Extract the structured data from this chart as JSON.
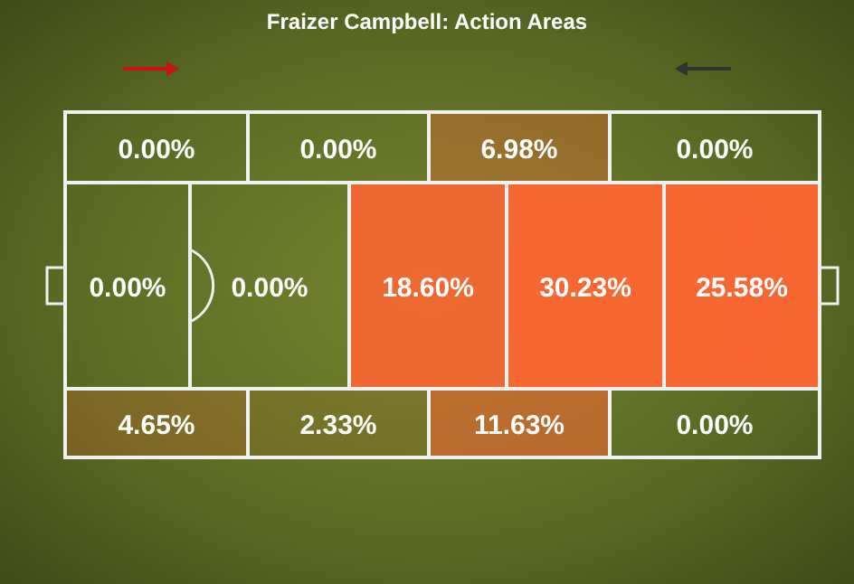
{
  "chart_data": {
    "type": "other",
    "title": "Fraizer Campbell: Action Areas",
    "values": [
      0.0,
      0.0,
      6.98,
      0.0,
      0.0,
      0.0,
      18.6,
      30.23,
      25.58,
      4.65,
      2.33,
      11.63,
      0.0
    ],
    "value_labels": [
      "0.00%",
      "0.00%",
      "6.98%",
      "0.00%",
      "0.00%",
      "0.00%",
      "18.60%",
      "30.23%",
      "25.58%",
      "4.65%",
      "2.33%",
      "11.63%",
      "0.00%"
    ]
  }
}
